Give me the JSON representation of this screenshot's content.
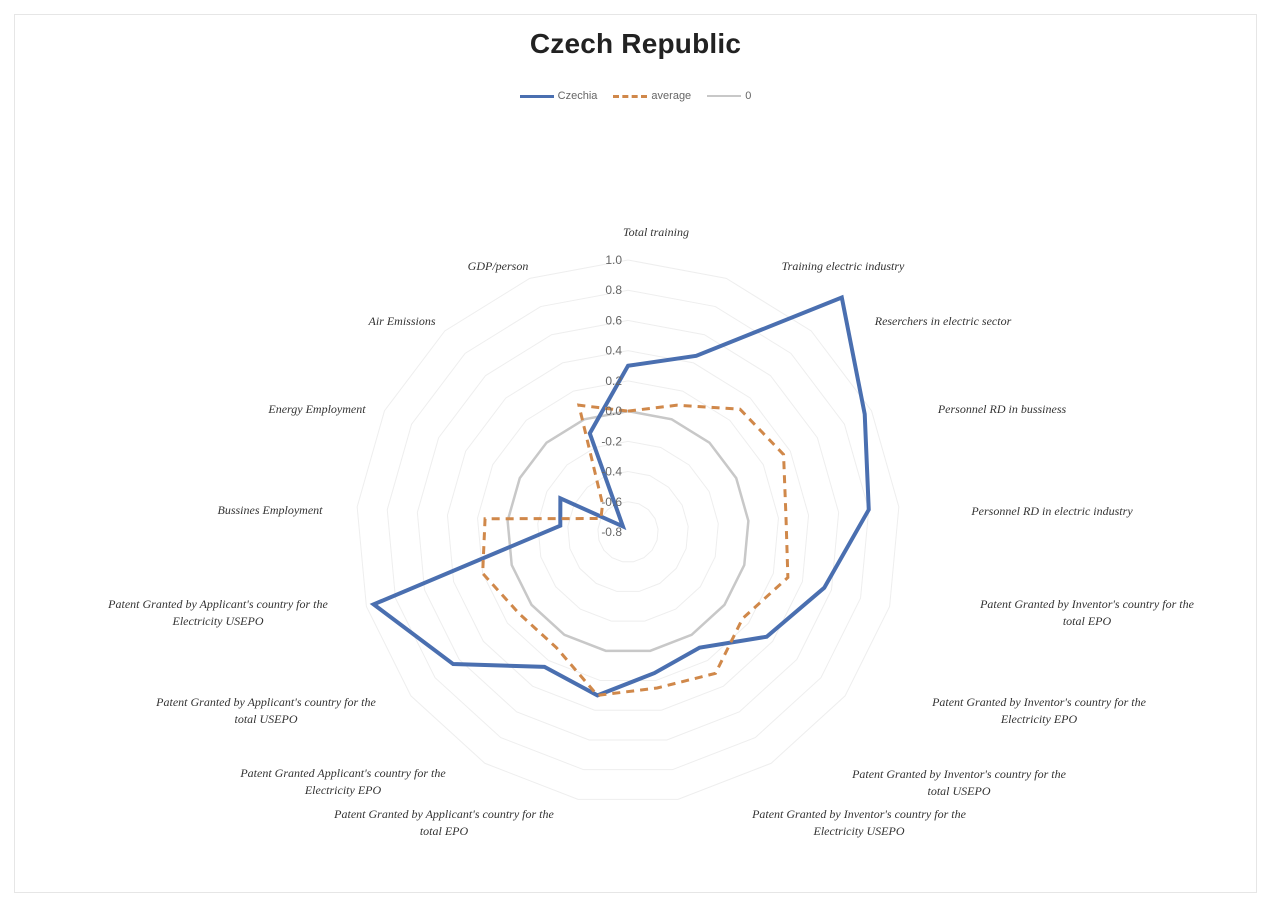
{
  "chart_data": {
    "type": "radar",
    "title": "Czech Republic",
    "categories": [
      "Total training",
      "Training electric industry",
      "Reserchers in electric sector",
      "Personnel RD in bussiness",
      "Personnel RD in electric industry",
      "Patent Granted by Inventor's country for the total EPO",
      "Patent Granted by Inventor's country for the Electricity EPO",
      "Patent Granted by Inventor's country for the total USEPO",
      "Patent Granted by Inventor's country for the Electricity USEPO",
      "Patent Granted by Applicant's country for the total EPO",
      "Patent Granted Applicant's country for the Electricity EPO",
      "Patent Granted by Applicant's country for the total USEPO",
      "Patent Granted by Applicant's country for the Electricity USEPO",
      "Bussines Employment",
      "Energy Employment",
      "Air Emissions",
      "GDP/person"
    ],
    "series": [
      {
        "name": "Czechia",
        "values": [
          0.3,
          0.45,
          1.3,
          0.95,
          0.8,
          0.55,
          0.35,
          0.1,
          0.15,
          0.3,
          0.25,
          0.65,
          0.95,
          -0.35,
          -0.3,
          -0.75,
          -0.1
        ],
        "color": "#4a6fb0",
        "style": "solid"
      },
      {
        "name": "average",
        "values": [
          0.0,
          0.1,
          0.3,
          0.35,
          0.25,
          0.3,
          0.15,
          0.3,
          0.25,
          0.3,
          0.1,
          0.1,
          0.2,
          0.15,
          -0.6,
          -0.55,
          0.1
        ],
        "color": "#d0884a",
        "style": "dashed"
      },
      {
        "name": "0",
        "values": [
          0,
          0,
          0,
          0,
          0,
          0,
          0,
          0,
          0,
          0,
          0,
          0,
          0,
          0,
          0,
          0,
          0
        ],
        "color": "#c8c8c8",
        "style": "solid"
      }
    ],
    "rlim": [
      -0.8,
      1.0
    ],
    "ticks": [
      "1.0",
      "0.8",
      "0.6",
      "0.4",
      "0.2",
      "0.0",
      "-0.2",
      "-0.4",
      "-0.6",
      "-0.8"
    ],
    "tick_values": [
      1.0,
      0.8,
      0.6,
      0.4,
      0.2,
      0.0,
      -0.2,
      -0.4,
      -0.6,
      -0.8
    ],
    "legend_position": "top",
    "grid": true
  }
}
